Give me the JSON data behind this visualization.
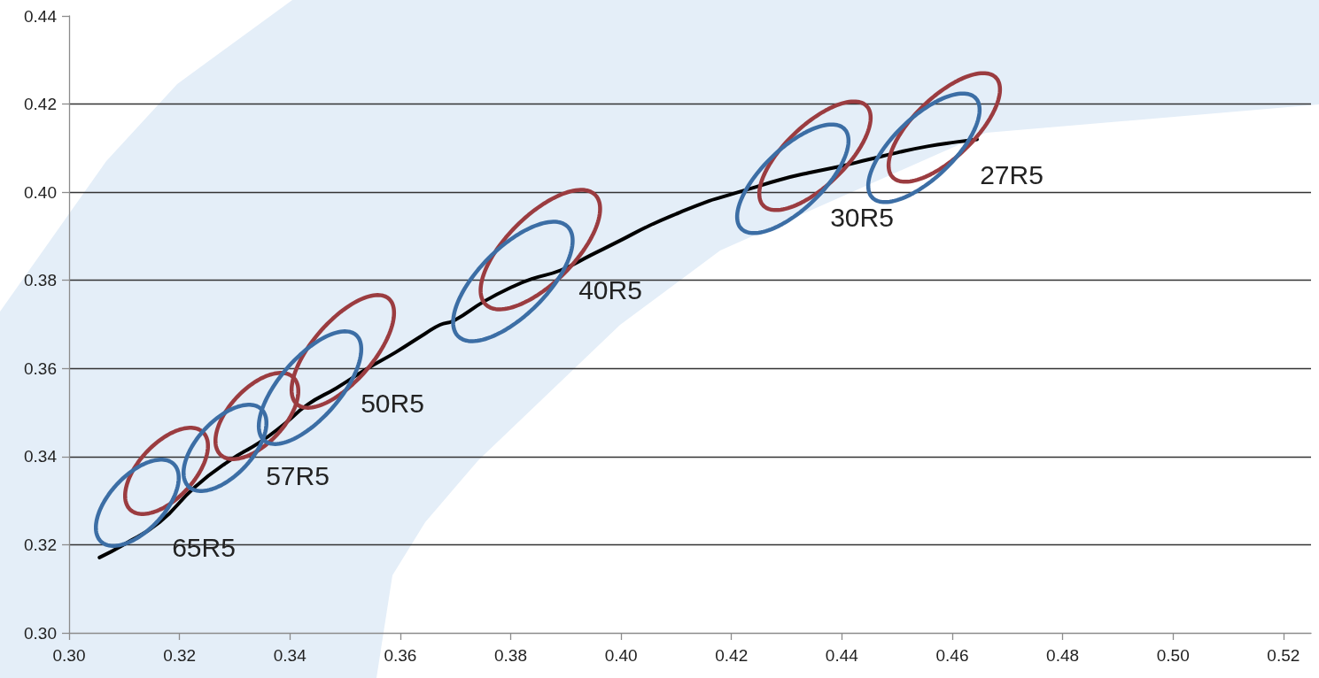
{
  "chart_data": {
    "type": "line",
    "xlim": [
      0.3,
      0.525
    ],
    "xticks": [
      {
        "value": 0.3,
        "label": "0.30"
      },
      0.32,
      0.34,
      0.36,
      0.38,
      {
        "value": 0.4,
        "label": "0.40"
      },
      0.42,
      0.44,
      0.46,
      0.48,
      {
        "value": 0.5,
        "label": "0.50"
      },
      0.52
    ],
    "ylim": [
      0.3,
      0.44
    ],
    "yticks": [
      {
        "value": 0.3,
        "label": "0.30"
      },
      0.32,
      0.34,
      0.36,
      0.38,
      {
        "value": 0.4,
        "label": "0.40"
      },
      0.42,
      0.44
    ],
    "grid": "y",
    "marker": "none",
    "series": [
      {
        "color": "#000000",
        "x": [
          0.3055,
          0.31,
          0.3164,
          0.3228,
          0.3292,
          0.3345,
          0.3388,
          0.3432,
          0.3485,
          0.3538,
          0.3592,
          0.3645,
          0.3672,
          0.3698,
          0.3753,
          0.3806,
          0.3838,
          0.3891,
          0.3945,
          0.3998,
          0.4051,
          0.4106,
          0.4159,
          0.418,
          0.4234,
          0.4287,
          0.434,
          0.4395,
          0.4448,
          0.4501,
          0.4555,
          0.4608,
          0.4645
        ],
        "values": [
          0.3171,
          0.3201,
          0.3251,
          0.3331,
          0.3392,
          0.3432,
          0.3472,
          0.3518,
          0.3556,
          0.3598,
          0.3637,
          0.3679,
          0.3699,
          0.3709,
          0.3753,
          0.3787,
          0.3803,
          0.3823,
          0.3857,
          0.389,
          0.3924,
          0.3954,
          0.398,
          0.3988,
          0.4008,
          0.4028,
          0.4044,
          0.4058,
          0.4074,
          0.409,
          0.4104,
          0.4114,
          0.412
        ]
      }
    ],
    "annotations": [
      "65R5",
      "57R5",
      "50R5",
      "40R5",
      "30R5",
      "27R5"
    ]
  }
}
